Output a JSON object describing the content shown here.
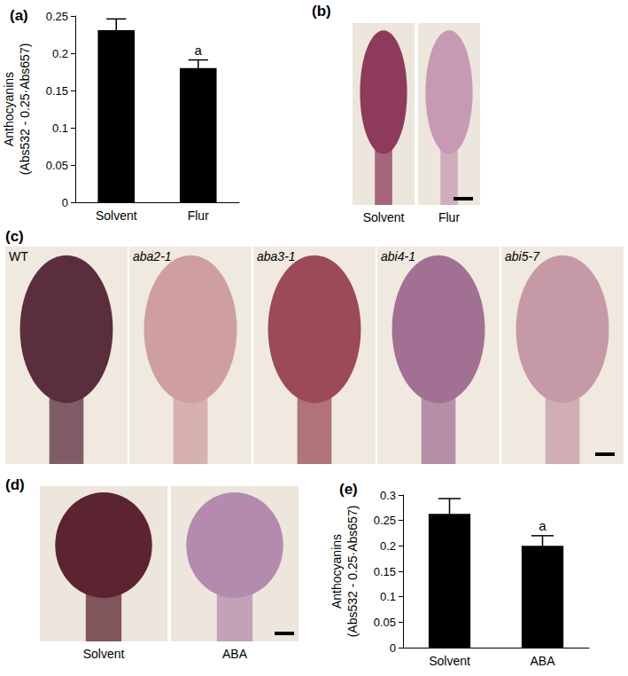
{
  "chart_data": [
    {
      "type": "bar",
      "title": "(a)",
      "y_label": "Anthocyanins\n(Abs532 - 0.25·Abs657)",
      "categories": [
        "Solvent",
        "Flur"
      ],
      "values": [
        0.231,
        0.18
      ],
      "errors": [
        0.015,
        0.011
      ],
      "annotations": [
        {
          "category": "Flur",
          "text": "a"
        }
      ],
      "color": "#000000",
      "ylim": [
        0,
        0.25
      ],
      "yticks": [
        0,
        0.05,
        0.1,
        0.15,
        0.2,
        0.25
      ],
      "grid": false
    },
    {
      "type": "bar",
      "title": "(e)",
      "y_label": "Anthocyanins\n(Abs532 - 0.25·Abs657)",
      "categories": [
        "Solvent",
        "ABA"
      ],
      "values": [
        0.263,
        0.2
      ],
      "errors": [
        0.03,
        0.02
      ],
      "annotations": [
        {
          "category": "ABA",
          "text": "a"
        }
      ],
      "color": "#000000",
      "ylim": [
        0,
        0.3
      ],
      "yticks": [
        0,
        0.05,
        0.1,
        0.15,
        0.2,
        0.25,
        0.3
      ],
      "grid": false
    }
  ],
  "photo_panels": [
    {
      "label": "(b)",
      "images": [
        "Solvent",
        "Flur"
      ]
    },
    {
      "label": "(c)",
      "images": [
        "WT",
        "aba2-1",
        "aba3-1",
        "abi4-1",
        "abi5-7"
      ]
    },
    {
      "label": "(d)",
      "images": [
        "Solvent",
        "ABA"
      ]
    }
  ]
}
